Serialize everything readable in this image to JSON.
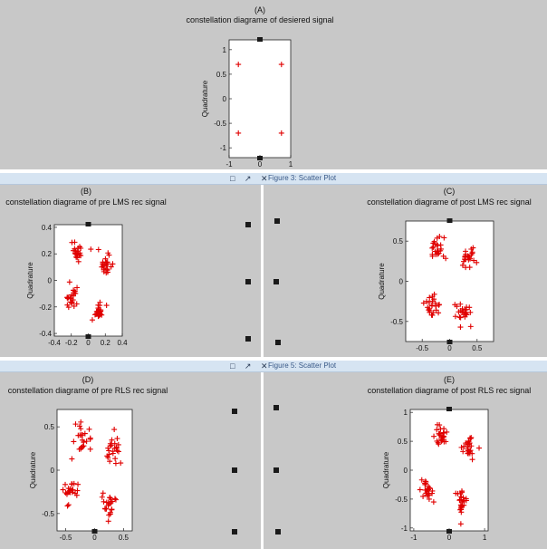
{
  "panels": {
    "A": {
      "letter": "(A)",
      "title": "constellation diagrame of desiered signal",
      "ylabel": "Quadrature",
      "ytick_labels": [
        "1",
        "0.5",
        "0",
        "-0.5",
        "-1"
      ],
      "xtick_labels": [
        "-1",
        "0",
        "1"
      ]
    },
    "B": {
      "letter": "(B)",
      "title": "constellation diagrame of pre LMS rec signal",
      "ylabel": "Quadrature",
      "ytick_labels": [
        "0.4",
        "0.2",
        "0",
        "-0.2",
        "-0.4"
      ],
      "xtick_labels": [
        "-0.4",
        "-0.2",
        "0",
        "0.2",
        "0.4"
      ]
    },
    "C": {
      "letter": "(C)",
      "title": "constellation diagrame of post LMS rec signal",
      "ylabel": "Quadrature",
      "ytick_labels": [
        "0.5",
        "0",
        "-0.5"
      ],
      "xtick_labels": [
        "-0.5",
        "0",
        "0.5"
      ]
    },
    "D": {
      "letter": "(D)",
      "title": "constellation diagrame of pre RLS rec signal",
      "ylabel": "Quadrature",
      "ytick_labels": [
        "0.5",
        "0",
        "-0.5"
      ],
      "xtick_labels": [
        "-0.5",
        "0",
        "0.5"
      ]
    },
    "E": {
      "letter": "(E)",
      "title": "constellation diagrame of post RLS rec signal",
      "ylabel": "Quadrature",
      "ytick_labels": [
        "1",
        "0.5",
        "0",
        "-0.5",
        "-1"
      ],
      "xtick_labels": [
        "-1",
        "0",
        "1"
      ]
    }
  },
  "windows": [
    {
      "title": "Figure 3: Scatter Plot",
      "icons": "□ ↗ ✕"
    },
    {
      "title": "Figure 5: Scatter Plot",
      "icons": "□ ↗ ✕"
    }
  ],
  "colors": {
    "marker": "#e00000",
    "background": "#c8c8c8",
    "axes": "#ffffff",
    "titlebar": "#d6e4f2"
  },
  "chart_data": [
    {
      "panel": "A",
      "type": "scatter",
      "marker": "+",
      "xlim": [
        -1,
        1
      ],
      "ylim": [
        -1.2,
        1.2
      ],
      "clusters": [
        {
          "x": -0.7,
          "y": 0.7
        },
        {
          "x": 0.7,
          "y": 0.7
        },
        {
          "x": -0.7,
          "y": -0.7
        },
        {
          "x": 0.7,
          "y": -0.7
        }
      ],
      "spread": 0,
      "points_per_cluster": 1
    },
    {
      "panel": "B",
      "type": "scatter",
      "marker": "+",
      "xlim": [
        -0.4,
        0.4
      ],
      "ylim": [
        -0.42,
        0.42
      ],
      "clusters": [
        {
          "x": -0.12,
          "y": 0.22
        },
        {
          "x": 0.2,
          "y": 0.12
        },
        {
          "x": -0.2,
          "y": -0.14
        },
        {
          "x": 0.12,
          "y": -0.24
        }
      ],
      "spread": 0.07,
      "points_per_cluster": 24
    },
    {
      "panel": "C",
      "type": "scatter",
      "marker": "+",
      "xlim": [
        -0.8,
        0.8
      ],
      "ylim": [
        -0.75,
        0.75
      ],
      "clusters": [
        {
          "x": -0.25,
          "y": 0.4
        },
        {
          "x": 0.35,
          "y": 0.3
        },
        {
          "x": -0.3,
          "y": -0.3
        },
        {
          "x": 0.25,
          "y": -0.38
        }
      ],
      "spread": 0.14,
      "points_per_cluster": 24
    },
    {
      "panel": "D",
      "type": "scatter",
      "marker": "+",
      "xlim": [
        -0.65,
        0.65
      ],
      "ylim": [
        -0.7,
        0.7
      ],
      "clusters": [
        {
          "x": -0.2,
          "y": 0.38
        },
        {
          "x": 0.32,
          "y": 0.25
        },
        {
          "x": -0.42,
          "y": -0.25
        },
        {
          "x": 0.28,
          "y": -0.4
        }
      ],
      "spread": 0.13,
      "points_per_cluster": 24
    },
    {
      "panel": "E",
      "type": "scatter",
      "marker": "+",
      "xlim": [
        -1.1,
        1.1
      ],
      "ylim": [
        -1.05,
        1.05
      ],
      "clusters": [
        {
          "x": -0.25,
          "y": 0.6
        },
        {
          "x": 0.55,
          "y": 0.4
        },
        {
          "x": -0.6,
          "y": -0.38
        },
        {
          "x": 0.35,
          "y": -0.55
        }
      ],
      "spread": 0.17,
      "points_per_cluster": 26
    }
  ]
}
